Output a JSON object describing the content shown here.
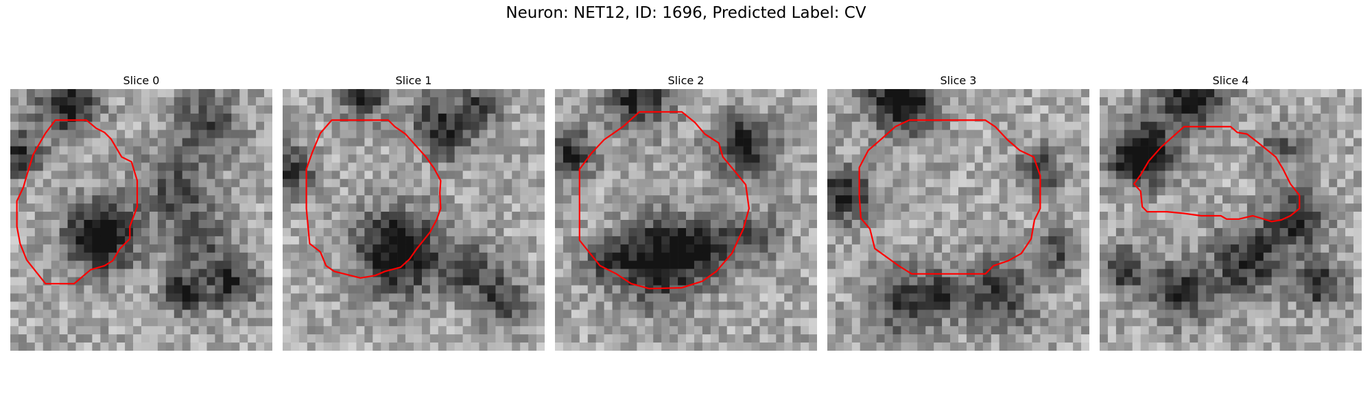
{
  "figure": {
    "suptitle": "Neuron: NET12, ID: 1696, Predicted Label: CV",
    "contour_color": "#ff0000",
    "colormap": "gray",
    "slices": [
      {
        "title": "Slice 0"
      },
      {
        "title": "Slice 1"
      },
      {
        "title": "Slice 2"
      },
      {
        "title": "Slice 3"
      },
      {
        "title": "Slice 4"
      }
    ]
  }
}
